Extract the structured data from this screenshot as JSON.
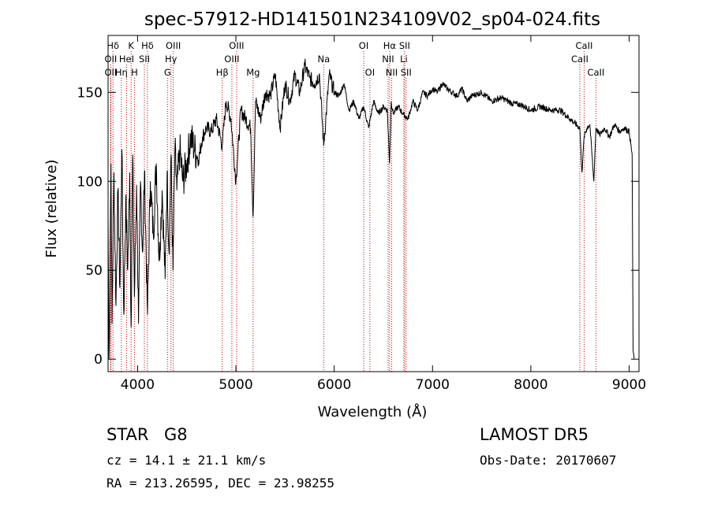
{
  "chart_data": {
    "type": "line",
    "title": "spec-57912-HD141501N234109V02_sp04-024.fits",
    "xlabel": "Wavelength (Å)",
    "ylabel": "Flux (relative)",
    "xlim": [
      3700,
      9100
    ],
    "ylim": [
      -7,
      182
    ],
    "x_ticks": [
      4000,
      5000,
      6000,
      7000,
      8000,
      9000
    ],
    "y_ticks": [
      0,
      50,
      100,
      150
    ],
    "grid": false,
    "series": [
      {
        "color": "#000000",
        "x": [
          3700,
          3710,
          3720,
          3730,
          3740,
          3760,
          3780,
          3800,
          3820,
          3840,
          3860,
          3880,
          3900,
          3920,
          3934,
          3950,
          3968,
          3990,
          4010,
          4030,
          4050,
          4070,
          4101,
          4130,
          4160,
          4190,
          4220,
          4250,
          4280,
          4300,
          4320,
          4340,
          4360,
          4380,
          4400,
          4430,
          4460,
          4500,
          4540,
          4580,
          4620,
          4660,
          4700,
          4750,
          4800,
          4861,
          4900,
          4950,
          5000,
          5050,
          5100,
          5150,
          5175,
          5200,
          5250,
          5300,
          5350,
          5400,
          5450,
          5500,
          5550,
          5600,
          5650,
          5700,
          5750,
          5800,
          5850,
          5893,
          5950,
          6000,
          6050,
          6100,
          6150,
          6200,
          6250,
          6300,
          6350,
          6400,
          6450,
          6500,
          6540,
          6563,
          6580,
          6600,
          6650,
          6700,
          6750,
          6800,
          6850,
          6900,
          6950,
          7000,
          7050,
          7100,
          7150,
          7200,
          7250,
          7300,
          7350,
          7400,
          7500,
          7600,
          7700,
          7800,
          7900,
          8000,
          8100,
          8200,
          8300,
          8400,
          8498,
          8520,
          8542,
          8570,
          8600,
          8640,
          8662,
          8700,
          8750,
          8800,
          8850,
          8900,
          8950,
          9000,
          9030,
          9040,
          9050
        ],
        "y": [
          80,
          0,
          60,
          110,
          20,
          105,
          30,
          95,
          40,
          118,
          25,
          90,
          50,
          105,
          18,
          115,
          35,
          98,
          20,
          100,
          60,
          105,
          25,
          100,
          70,
          110,
          55,
          95,
          45,
          105,
          60,
          115,
          50,
          118,
          95,
          118,
          100,
          110,
          125,
          118,
          112,
          125,
          130,
          128,
          135,
          120,
          145,
          135,
          100,
          140,
          135,
          130,
          80,
          145,
          135,
          150,
          148,
          160,
          130,
          155,
          145,
          160,
          150,
          165,
          158,
          155,
          160,
          120,
          160,
          150,
          148,
          155,
          140,
          145,
          135,
          142,
          130,
          145,
          138,
          142,
          140,
          110,
          145,
          138,
          142,
          138,
          135,
          145,
          140,
          150,
          148,
          152,
          150,
          155,
          152,
          150,
          148,
          152,
          145,
          148,
          150,
          145,
          147,
          144,
          143,
          140,
          142,
          140,
          140,
          135,
          130,
          105,
          125,
          130,
          132,
          100,
          130,
          126,
          130,
          125,
          132,
          128,
          130,
          128,
          115,
          5,
          0
        ]
      }
    ],
    "spectral_lines": [
      {
        "label": "Hδ",
        "x": 3750,
        "row": 1
      },
      {
        "label": "K",
        "x": 3934,
        "row": 1
      },
      {
        "label": "Hδ",
        "x": 4101,
        "row": 1
      },
      {
        "label": "OIII",
        "x": 4363,
        "row": 1
      },
      {
        "label": "OIII",
        "x": 5007,
        "row": 1
      },
      {
        "label": "OI",
        "x": 6300,
        "row": 1
      },
      {
        "label": "Hα",
        "x": 6563,
        "row": 1
      },
      {
        "label": "SII",
        "x": 6716,
        "row": 1
      },
      {
        "label": "CaII",
        "x": 8542,
        "row": 1
      },
      {
        "label": "OII",
        "x": 3727,
        "row": 2
      },
      {
        "label": "HeI",
        "x": 3888,
        "row": 2
      },
      {
        "label": "SII",
        "x": 4069,
        "row": 2
      },
      {
        "label": "Hγ",
        "x": 4340,
        "row": 2
      },
      {
        "label": "OIII",
        "x": 4959,
        "row": 2
      },
      {
        "label": "Na",
        "x": 5893,
        "row": 2
      },
      {
        "label": "NII",
        "x": 6548,
        "row": 2
      },
      {
        "label": "Li",
        "x": 6708,
        "row": 2
      },
      {
        "label": "CaII",
        "x": 8498,
        "row": 2
      },
      {
        "label": "OII",
        "x": 3727,
        "row": 3
      },
      {
        "label": "Hη",
        "x": 3835,
        "row": 3
      },
      {
        "label": "H",
        "x": 3968,
        "row": 3
      },
      {
        "label": "G",
        "x": 4304,
        "row": 3
      },
      {
        "label": "Hβ",
        "x": 4861,
        "row": 3
      },
      {
        "label": "Mg",
        "x": 5175,
        "row": 3
      },
      {
        "label": "OI",
        "x": 6363,
        "row": 3
      },
      {
        "label": "NII",
        "x": 6584,
        "row": 3
      },
      {
        "label": "SII",
        "x": 6731,
        "row": 3
      },
      {
        "label": "CaII",
        "x": 8662,
        "row": 3
      }
    ],
    "line_marker_color": "#cc0000"
  },
  "info": {
    "class_label": "STAR",
    "subclass": "G8",
    "survey": "LAMOST DR5",
    "redshift_line": "cz = 14.1 ± 21.1 km/s",
    "obs_date": "Obs-Date: 20170607",
    "coords": "RA = 213.26595, DEC =  23.98255"
  }
}
